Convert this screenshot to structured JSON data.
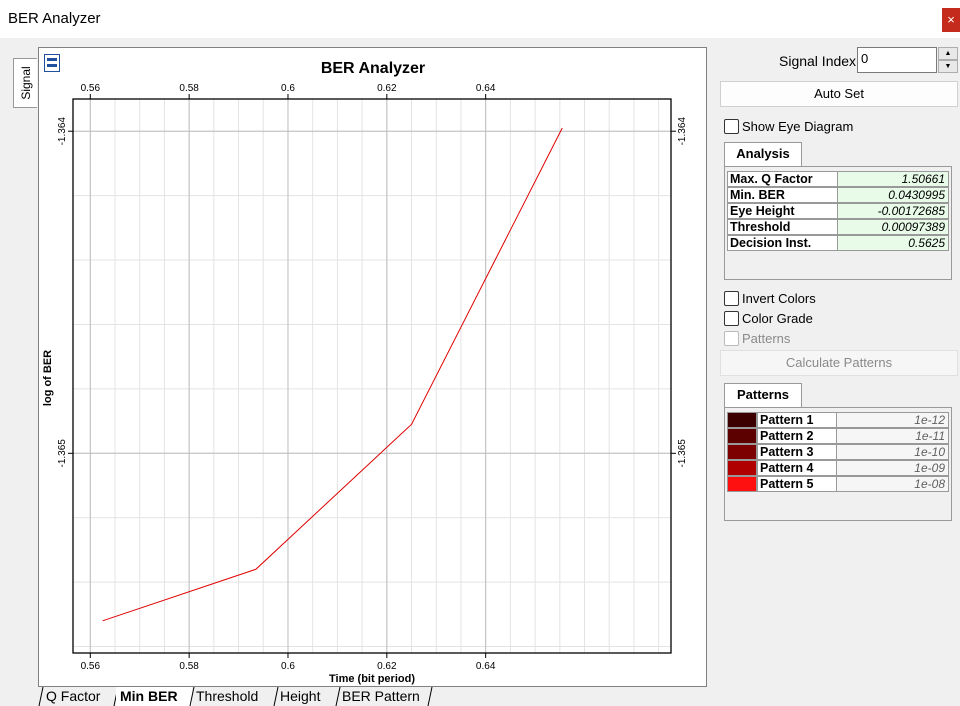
{
  "window": {
    "title": "BER Analyzer",
    "close_glyph": "×"
  },
  "left_tab": {
    "label": "Signal"
  },
  "bottom_tabs": [
    "Q Factor",
    "Min BER",
    "Threshold",
    "Height",
    "BER Pattern"
  ],
  "active_tab": "Min BER",
  "right_panel": {
    "signal_index_label": "Signal Index:",
    "signal_index_value": "0",
    "auto_set_label": "Auto Set",
    "show_eye_label": "Show Eye Diagram",
    "analysis_tab_label": "Analysis",
    "analysis_rows": [
      {
        "label": "Max. Q Factor",
        "value": "1.50661"
      },
      {
        "label": "Min. BER",
        "value": "0.0430995"
      },
      {
        "label": "Eye Height",
        "value": "-0.00172685"
      },
      {
        "label": "Threshold",
        "value": "0.00097389"
      },
      {
        "label": "Decision Inst.",
        "value": "0.5625"
      }
    ],
    "invert_colors_label": "Invert Colors",
    "color_grade_label": "Color Grade",
    "patterns_check_label": "Patterns",
    "calculate_patterns_label": "Calculate Patterns",
    "patterns_tab_label": "Patterns",
    "pattern_rows": [
      {
        "label": "Pattern 1",
        "value": "1e-12",
        "color": "#3d0000"
      },
      {
        "label": "Pattern 2",
        "value": "1e-11",
        "color": "#5c0000"
      },
      {
        "label": "Pattern 3",
        "value": "1e-10",
        "color": "#7d0000"
      },
      {
        "label": "Pattern 4",
        "value": "1e-09",
        "color": "#b00000"
      },
      {
        "label": "Pattern 5",
        "value": "1e-08",
        "color": "#ff1010"
      }
    ]
  },
  "chart_data": {
    "type": "line",
    "title": "BER Analyzer",
    "xlabel": "Time (bit period)",
    "ylabel": "log of BER",
    "xlim": [
      0.5565,
      0.6775
    ],
    "ylim": [
      -1.36562,
      -1.3639
    ],
    "x_ticks": [
      "0.56",
      "0.58",
      "0.6",
      "0.62",
      "0.64"
    ],
    "x_tick_values": [
      0.56,
      0.58,
      0.6,
      0.62,
      0.64
    ],
    "y_ticks": [
      "-1.364",
      "-1.365"
    ],
    "y_tick_values": [
      -1.364,
      -1.365
    ],
    "grid": true,
    "line_color": "#e00000",
    "series": [
      {
        "x": [
          0.5625,
          0.5935,
          0.625,
          0.6555
        ],
        "y": [
          -1.36552,
          -1.36536,
          -1.36491,
          -1.36399
        ]
      }
    ]
  }
}
